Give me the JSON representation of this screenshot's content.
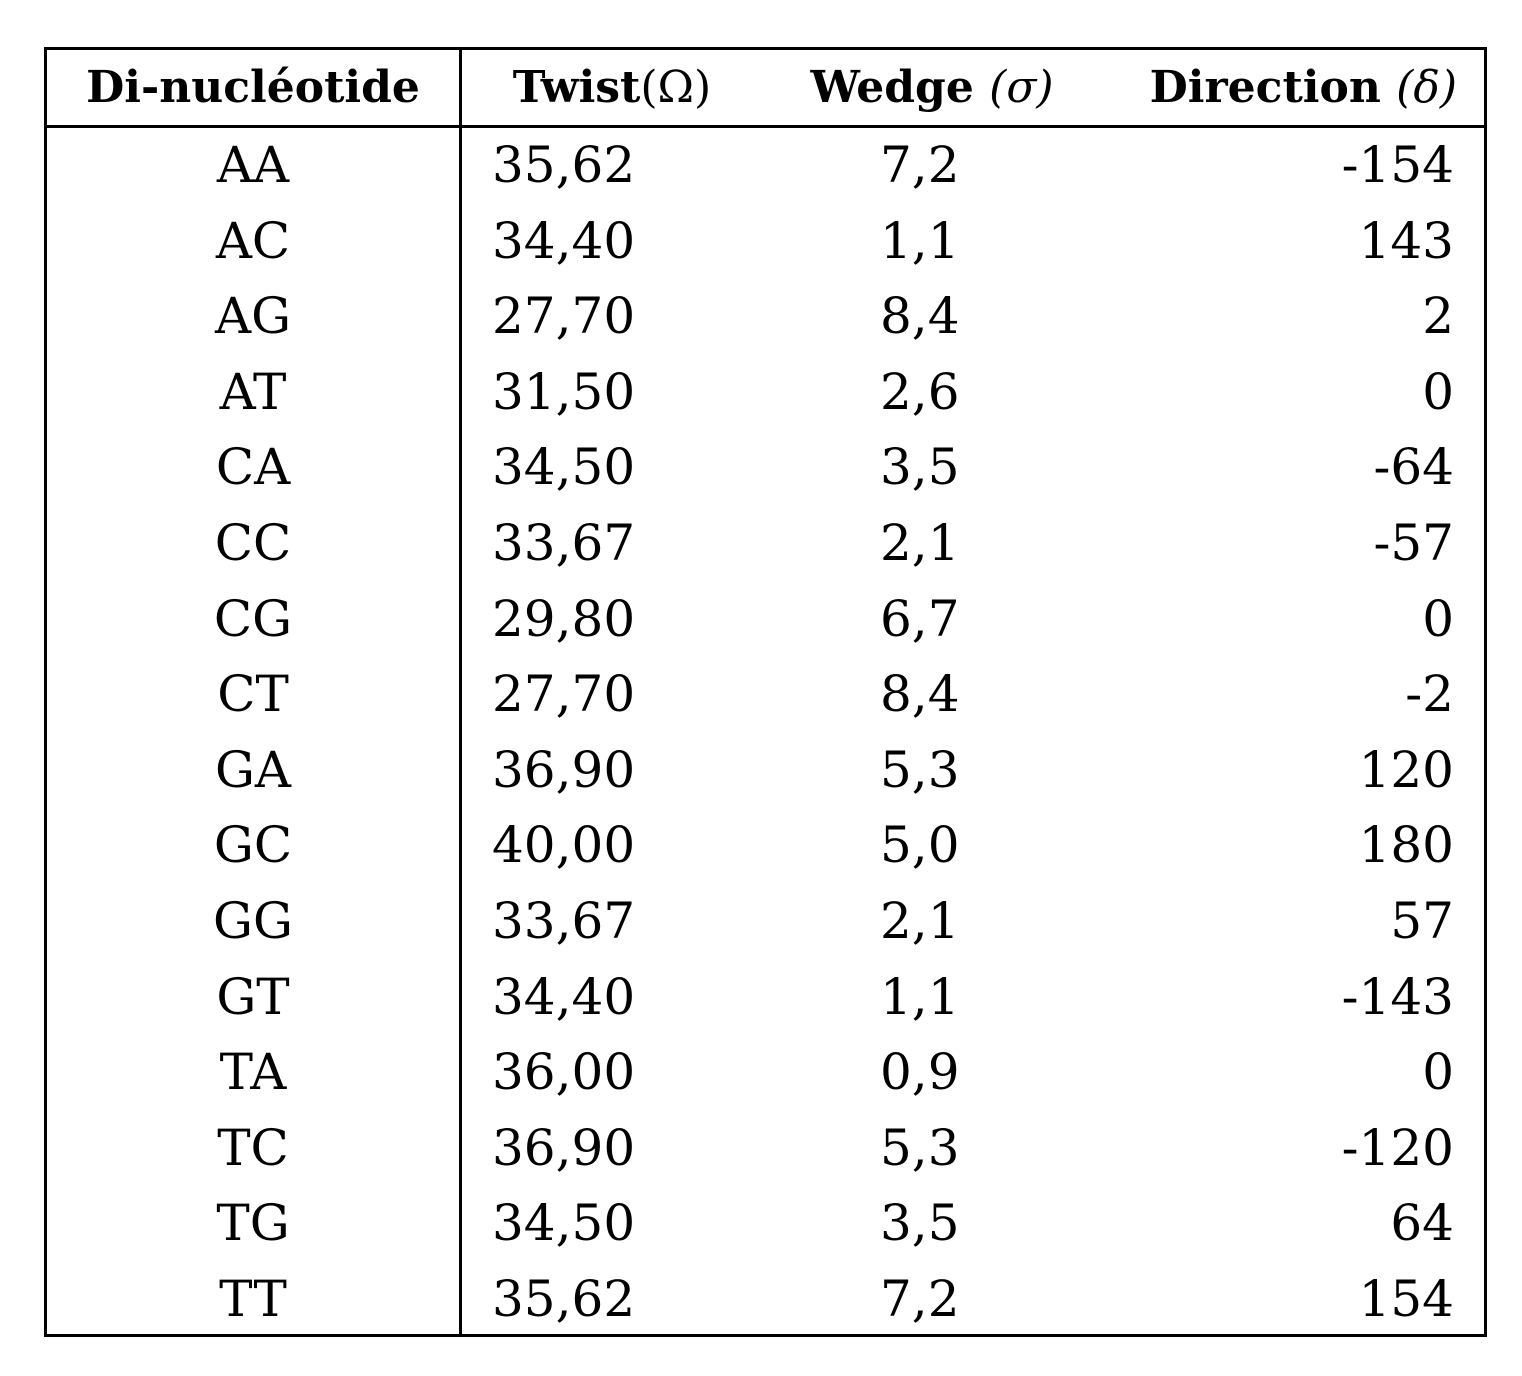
{
  "table": {
    "headers": {
      "dinucleotide": "Di-nucléotide",
      "twist": "Twist",
      "twist_symbol": "(Ω)",
      "wedge": "Wedge",
      "wedge_symbol": "(σ)",
      "direction": "Direction",
      "direction_symbol": "(δ)"
    },
    "rows": [
      {
        "dinucleotide": "AA",
        "twist": "35,62",
        "wedge": "7,2",
        "direction": "-154"
      },
      {
        "dinucleotide": "AC",
        "twist": "34,40",
        "wedge": "1,1",
        "direction": "143"
      },
      {
        "dinucleotide": "AG",
        "twist": "27,70",
        "wedge": "8,4",
        "direction": "2"
      },
      {
        "dinucleotide": "AT",
        "twist": "31,50",
        "wedge": "2,6",
        "direction": "0"
      },
      {
        "dinucleotide": "CA",
        "twist": "34,50",
        "wedge": "3,5",
        "direction": "-64"
      },
      {
        "dinucleotide": "CC",
        "twist": "33,67",
        "wedge": "2,1",
        "direction": "-57"
      },
      {
        "dinucleotide": "CG",
        "twist": "29,80",
        "wedge": "6,7",
        "direction": "0"
      },
      {
        "dinucleotide": "CT",
        "twist": "27,70",
        "wedge": "8,4",
        "direction": "-2"
      },
      {
        "dinucleotide": "GA",
        "twist": "36,90",
        "wedge": "5,3",
        "direction": "120"
      },
      {
        "dinucleotide": "GC",
        "twist": "40,00",
        "wedge": "5,0",
        "direction": "180"
      },
      {
        "dinucleotide": "GG",
        "twist": "33,67",
        "wedge": "2,1",
        "direction": "57"
      },
      {
        "dinucleotide": "GT",
        "twist": "34,40",
        "wedge": "1,1",
        "direction": "-143"
      },
      {
        "dinucleotide": "TA",
        "twist": "36,00",
        "wedge": "0,9",
        "direction": "0"
      },
      {
        "dinucleotide": "TC",
        "twist": "36,90",
        "wedge": "5,3",
        "direction": "-120"
      },
      {
        "dinucleotide": "TG",
        "twist": "34,50",
        "wedge": "3,5",
        "direction": "64"
      },
      {
        "dinucleotide": "TT",
        "twist": "35,62",
        "wedge": "7,2",
        "direction": "154"
      }
    ]
  }
}
